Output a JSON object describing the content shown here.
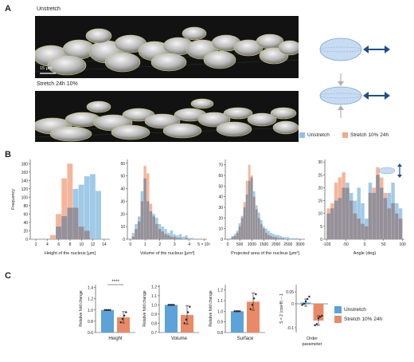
{
  "colors": {
    "unstretch": "#8fc1e3",
    "stretch": "#f2a98a",
    "overlap": "#8f8f9a",
    "unstretch_bar": "#5ba3d9",
    "stretch_bar": "#e98a66",
    "arrow": "#1f4e8c"
  },
  "panels": {
    "a": "A",
    "b": "B",
    "c": "C"
  },
  "panel_a": {
    "label_top": "Unstretch",
    "label_bottom": "Stretch 24h 10%",
    "scale_bar": "15 μm",
    "legend": [
      {
        "label": "Unstretch",
        "color": "#8fc1e3"
      },
      {
        "label": "Stretch 10% 24h",
        "color": "#f2a98a"
      }
    ]
  },
  "chart_data": [
    {
      "type": "bar",
      "subtype": "histogram",
      "ylabel": "Frequency",
      "xlabel": "Height of the nucleus [μm]",
      "xlim": [
        1,
        15
      ],
      "ylim": [
        0,
        190
      ],
      "xticks": [
        "2",
        "4",
        "6",
        "8",
        "10",
        "12",
        "14"
      ],
      "yticks": [
        "0",
        "20",
        "40",
        "60",
        "80",
        "100",
        "120",
        "140",
        "160",
        "180"
      ],
      "bins": [
        5,
        6,
        7,
        8,
        9,
        10,
        11,
        12,
        13,
        14
      ],
      "series": [
        {
          "name": "Unstretch",
          "values": [
            0,
            30,
            55,
            75,
            120,
            130,
            150,
            155,
            115,
            0
          ]
        },
        {
          "name": "Stretch 10% 24h",
          "values": [
            10,
            60,
            145,
            180,
            75,
            30,
            20,
            0,
            0,
            0
          ]
        }
      ]
    },
    {
      "type": "bar",
      "subtype": "histogram",
      "xlabel": "Volume of the nucleus [μm³]",
      "xlim": [
        -0.2,
        5.2
      ],
      "ylim": [
        0,
        63
      ],
      "xticks": [
        "0",
        "1",
        "2",
        "3",
        "4",
        "5 × 10⁴"
      ],
      "yticks": [
        "0",
        "10",
        "20",
        "30",
        "40",
        "50",
        "60"
      ],
      "bins": [
        0.2,
        0.4,
        0.6,
        0.8,
        1.0,
        1.2,
        1.4,
        1.6,
        1.8,
        2.0,
        2.2,
        2.4,
        2.6,
        2.8,
        3.0,
        3.2,
        3.4,
        3.6,
        3.8,
        4.0,
        4.2
      ],
      "series": [
        {
          "name": "Unstretch",
          "values": [
            5,
            12,
            18,
            38,
            48,
            30,
            22,
            20,
            17,
            12,
            10,
            8,
            5,
            7,
            4,
            3,
            4,
            2,
            3,
            1,
            1
          ]
        },
        {
          "name": "Stretch 10% 24h",
          "values": [
            2,
            8,
            14,
            30,
            58,
            52,
            28,
            18,
            12,
            8,
            6,
            4,
            3,
            2,
            2,
            1,
            1,
            0,
            1,
            0,
            0
          ]
        }
      ]
    },
    {
      "type": "bar",
      "subtype": "histogram",
      "xlabel": "Projected area of the nucleus [μm²]",
      "xlim": [
        -100,
        3200
      ],
      "ylim": [
        0,
        75
      ],
      "xticks": [
        "0",
        "500",
        "1000",
        "1500",
        "2000",
        "2500",
        "3000"
      ],
      "yticks": [
        "0",
        "10",
        "20",
        "30",
        "40",
        "50",
        "60",
        "70"
      ],
      "bins": [
        100,
        200,
        300,
        400,
        500,
        600,
        700,
        800,
        900,
        1000,
        1100,
        1200,
        1300,
        1400,
        1500,
        1600,
        1700,
        1800,
        1900,
        2000,
        2100,
        2200,
        2300,
        2400,
        2500,
        2600,
        2700,
        2800,
        2900
      ],
      "series": [
        {
          "name": "Unstretch",
          "values": [
            1,
            3,
            5,
            8,
            15,
            22,
            30,
            42,
            55,
            58,
            45,
            32,
            25,
            18,
            12,
            10,
            8,
            6,
            5,
            4,
            4,
            3,
            2,
            2,
            2,
            1,
            1,
            1,
            1
          ]
        },
        {
          "name": "Stretch 10% 24h",
          "values": [
            0,
            2,
            3,
            6,
            12,
            20,
            35,
            55,
            70,
            60,
            40,
            28,
            20,
            14,
            10,
            6,
            4,
            3,
            2,
            2,
            1,
            1,
            1,
            0,
            0,
            0,
            0,
            0,
            0
          ]
        }
      ]
    },
    {
      "type": "bar",
      "subtype": "histogram",
      "xlabel": "Angle (deg)",
      "xlim": [
        -105,
        105
      ],
      "ylim": [
        0,
        31
      ],
      "xticks": [
        "-100",
        "-50",
        "0",
        "50",
        "100"
      ],
      "yticks": [
        "0",
        "5",
        "10",
        "15",
        "20",
        "25",
        "30"
      ],
      "bins": [
        -95,
        -85,
        -75,
        -65,
        -55,
        -45,
        -35,
        -25,
        -15,
        -5,
        5,
        15,
        25,
        35,
        45,
        55,
        65,
        75,
        85,
        95
      ],
      "series": [
        {
          "name": "Unstretch",
          "values": [
            10,
            12,
            15,
            16,
            20,
            22,
            18,
            15,
            20,
            14,
            8,
            22,
            18,
            25,
            20,
            16,
            18,
            22,
            14,
            12
          ]
        },
        {
          "name": "Stretch 10% 24h",
          "values": [
            12,
            14,
            22,
            24,
            26,
            20,
            15,
            10,
            8,
            6,
            5,
            18,
            20,
            28,
            24,
            18,
            12,
            14,
            10,
            8
          ]
        }
      ]
    },
    {
      "type": "bar",
      "ylabel": "Relative fold change",
      "xlabel": "Height",
      "significance": "****",
      "ylim": [
        0.6,
        1.45
      ],
      "yticks": [
        "0.6",
        "0.8",
        "1.0",
        "1.2",
        "1.4"
      ],
      "series": [
        {
          "name": "Unstretch",
          "values": [
            1.0
          ],
          "points": [
            1.0,
            1.0,
            1.0,
            1.0
          ]
        },
        {
          "name": "Stretch 10% 24h",
          "values": [
            0.87
          ],
          "error": 0.1,
          "points": [
            0.78,
            0.84,
            0.9,
            0.96
          ]
        }
      ]
    },
    {
      "type": "bar",
      "ylabel": "Relative fold change",
      "xlabel": "Volume",
      "ylim": [
        0.7,
        1.22
      ],
      "yticks": [
        "0.7",
        "0.8",
        "0.9",
        "1.0",
        "1.1",
        "1.2"
      ],
      "series": [
        {
          "name": "Unstretch",
          "values": [
            1.0
          ],
          "points": [
            1.0,
            1.0,
            1.0,
            1.0
          ]
        },
        {
          "name": "Stretch 10% 24h",
          "values": [
            0.89
          ],
          "error": 0.1,
          "points": [
            0.8,
            0.84,
            0.92,
            0.98
          ]
        }
      ]
    },
    {
      "type": "bar",
      "ylabel": "Relative fold change",
      "xlabel": "Surface",
      "ylim": [
        0.8,
        1.25
      ],
      "yticks": [
        "0.8",
        "0.9",
        "1.0",
        "1.1",
        "1.2"
      ],
      "series": [
        {
          "name": "Unstretch",
          "values": [
            1.0
          ],
          "points": [
            1.0,
            1.0,
            1.0,
            1.0
          ]
        },
        {
          "name": "Stretch 10% 24h",
          "values": [
            1.09
          ],
          "error": 0.08,
          "points": [
            1.02,
            1.06,
            1.12,
            1.16
          ]
        }
      ]
    },
    {
      "type": "bar",
      "ylabel": "S = 2 ⟨cos²θ⟩ − 1",
      "xlabel": "Order parameter",
      "ylim": [
        -0.12,
        0.08
      ],
      "yticks": [
        "-0.1",
        "0",
        "0.05"
      ],
      "series": [
        {
          "name": "Unstretch",
          "values": [
            0.005
          ],
          "error": 0.015,
          "points": [
            -0.005,
            0.0,
            0.01,
            0.02,
            0.03
          ]
        },
        {
          "name": "Stretch 10% 24h",
          "values": [
            -0.07
          ],
          "error": 0.02,
          "points": [
            -0.09,
            -0.085,
            -0.06,
            -0.055,
            -0.05
          ]
        }
      ]
    }
  ],
  "legend_c": [
    {
      "label": "Unstretch",
      "color": "#5ba3d9"
    },
    {
      "label": "Stretch 10% 24h",
      "color": "#e98a66"
    }
  ]
}
